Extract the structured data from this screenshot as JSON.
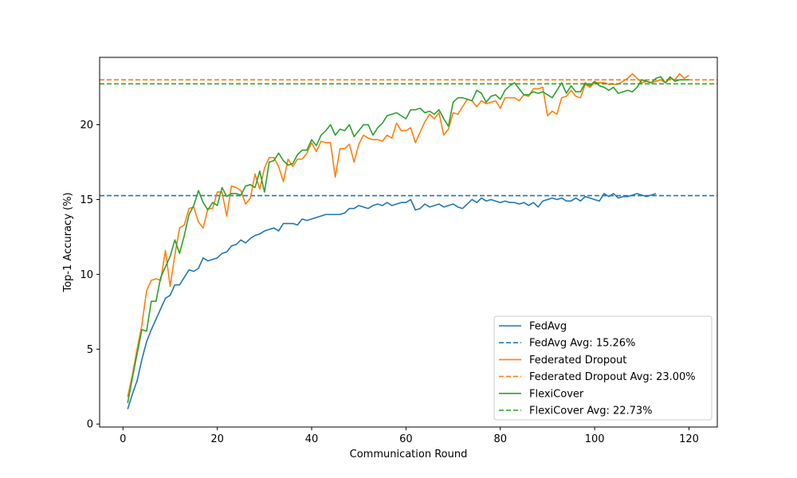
{
  "chart_data": {
    "type": "line",
    "title": "",
    "xlabel": "Communication Round",
    "ylabel": "Top-1 Accuracy (%)",
    "xlim": [
      -4.95,
      126.0
    ],
    "ylim": [
      -0.2,
      24.5
    ],
    "xticks": [
      0,
      20,
      40,
      60,
      80,
      100,
      120
    ],
    "yticks": [
      0,
      5,
      10,
      15,
      20
    ],
    "grid": false,
    "legend_position": "lower-right",
    "series": [
      {
        "name": "FedAvg",
        "color": "#1f77b4",
        "style": "solid",
        "x": [
          1,
          2,
          3,
          4,
          5,
          6,
          7,
          8,
          9,
          10,
          11,
          12,
          13,
          14,
          15,
          16,
          17,
          18,
          19,
          20,
          21,
          22,
          23,
          24,
          25,
          26,
          27,
          28,
          29,
          30,
          31,
          32,
          33,
          34,
          35,
          36,
          37,
          38,
          39,
          40,
          41,
          42,
          43,
          44,
          45,
          46,
          47,
          48,
          49,
          50,
          51,
          52,
          53,
          54,
          55,
          56,
          57,
          58,
          59,
          60,
          61,
          62,
          63,
          64,
          65,
          66,
          67,
          68,
          69,
          70,
          71,
          72,
          73,
          74,
          75,
          76,
          77,
          78,
          79,
          80,
          81,
          82,
          83,
          84,
          85,
          86,
          87,
          88,
          89,
          90,
          91,
          92,
          93,
          94,
          95,
          96,
          97,
          98,
          99,
          100,
          101,
          102,
          103,
          104,
          105,
          106,
          107,
          108,
          109,
          110,
          111,
          112,
          113
        ],
        "y": [
          1.0,
          2.0,
          2.9,
          4.3,
          5.5,
          6.3,
          7.0,
          7.7,
          8.4,
          8.6,
          9.3,
          9.3,
          9.8,
          10.3,
          10.2,
          10.4,
          11.1,
          10.9,
          11.0,
          11.1,
          11.4,
          11.5,
          11.9,
          12.0,
          12.3,
          12.1,
          12.4,
          12.6,
          12.7,
          12.9,
          13.0,
          13.1,
          12.9,
          13.4,
          13.4,
          13.4,
          13.3,
          13.7,
          13.6,
          13.7,
          13.8,
          13.9,
          14.0,
          14.0,
          14.0,
          14.0,
          14.1,
          14.4,
          14.4,
          14.6,
          14.5,
          14.4,
          14.6,
          14.7,
          14.6,
          14.8,
          14.6,
          14.7,
          14.8,
          14.8,
          15.0,
          14.3,
          14.4,
          14.7,
          14.5,
          14.6,
          14.7,
          14.5,
          14.6,
          14.7,
          14.5,
          14.4,
          14.7,
          15.0,
          14.8,
          15.1,
          14.9,
          15.0,
          14.9,
          14.8,
          14.9,
          14.8,
          14.8,
          14.7,
          14.8,
          14.6,
          14.8,
          14.5,
          14.9,
          15.0,
          15.1,
          15.0,
          15.1,
          14.9,
          14.9,
          15.1,
          14.9,
          15.2,
          15.1,
          15.0,
          14.9,
          15.4,
          15.2,
          15.4,
          15.1,
          15.2,
          15.2,
          15.3,
          15.4,
          15.3,
          15.2,
          15.3,
          15.4
        ]
      },
      {
        "name": "FedAvg Avg: 15.26%",
        "color": "#1f77b4",
        "style": "dashed",
        "constant": 15.26
      },
      {
        "name": "Federated Dropout",
        "color": "#ff7f0e",
        "style": "solid",
        "x": [
          1,
          2,
          3,
          4,
          5,
          6,
          7,
          8,
          9,
          10,
          11,
          12,
          13,
          14,
          15,
          16,
          17,
          18,
          19,
          20,
          21,
          22,
          23,
          24,
          25,
          26,
          27,
          28,
          29,
          30,
          31,
          32,
          33,
          34,
          35,
          36,
          37,
          38,
          39,
          40,
          41,
          42,
          43,
          44,
          45,
          46,
          47,
          48,
          49,
          50,
          51,
          52,
          53,
          54,
          55,
          56,
          57,
          58,
          59,
          60,
          61,
          62,
          63,
          64,
          65,
          66,
          67,
          68,
          69,
          70,
          71,
          72,
          73,
          74,
          75,
          76,
          77,
          78,
          79,
          80,
          81,
          82,
          83,
          84,
          85,
          86,
          87,
          88,
          89,
          90,
          91,
          92,
          93,
          94,
          95,
          96,
          97,
          98,
          99,
          100,
          101,
          102,
          103,
          104,
          105,
          106,
          107,
          108,
          109,
          110,
          111,
          112,
          113,
          114,
          115,
          116,
          117,
          118,
          119,
          120
        ],
        "y": [
          1.8,
          3.3,
          5.0,
          6.6,
          8.9,
          9.6,
          9.7,
          9.6,
          11.6,
          9.2,
          11.3,
          13.1,
          13.3,
          14.4,
          14.5,
          13.5,
          13.1,
          14.4,
          14.4,
          15.5,
          15.5,
          13.9,
          15.9,
          15.8,
          15.6,
          14.7,
          15.1,
          16.7,
          15.7,
          17.1,
          17.8,
          17.8,
          17.2,
          16.2,
          17.7,
          17.2,
          17.7,
          17.7,
          18.1,
          18.8,
          18.2,
          18.9,
          18.8,
          18.8,
          16.5,
          18.4,
          18.4,
          18.7,
          17.5,
          18.7,
          19.3,
          19.1,
          19.0,
          19.0,
          18.9,
          19.3,
          19.1,
          20.1,
          19.6,
          19.6,
          19.8,
          18.8,
          19.5,
          20.2,
          20.7,
          20.4,
          20.8,
          19.3,
          19.7,
          20.8,
          20.7,
          21.2,
          21.7,
          21.6,
          21.2,
          21.6,
          21.4,
          21.5,
          21.6,
          21.1,
          21.8,
          21.8,
          21.8,
          21.6,
          22.0,
          21.9,
          22.4,
          22.4,
          22.5,
          20.6,
          20.9,
          20.7,
          21.8,
          21.9,
          22.3,
          21.9,
          21.8,
          22.7,
          22.5,
          22.8,
          22.8,
          22.8,
          22.7,
          22.7,
          22.7,
          22.9,
          23.1,
          23.4,
          23.1,
          22.8,
          22.9,
          22.8,
          22.9,
          23.0,
          22.8,
          23.1,
          23.0,
          23.4,
          23.1,
          23.3
        ]
      },
      {
        "name": "Federated Dropout Avg: 23.00%",
        "color": "#ff7f0e",
        "style": "dashed",
        "constant": 23.0
      },
      {
        "name": "FlexiCover",
        "color": "#2ca02c",
        "style": "solid",
        "x": [
          1,
          2,
          3,
          4,
          5,
          6,
          7,
          8,
          9,
          10,
          11,
          12,
          13,
          14,
          15,
          16,
          17,
          18,
          19,
          20,
          21,
          22,
          23,
          24,
          25,
          26,
          27,
          28,
          29,
          30,
          31,
          32,
          33,
          34,
          35,
          36,
          37,
          38,
          39,
          40,
          41,
          42,
          43,
          44,
          45,
          46,
          47,
          48,
          49,
          50,
          51,
          52,
          53,
          54,
          55,
          56,
          57,
          58,
          59,
          60,
          61,
          62,
          63,
          64,
          65,
          66,
          67,
          68,
          69,
          70,
          71,
          72,
          73,
          74,
          75,
          76,
          77,
          78,
          79,
          80,
          81,
          82,
          83,
          84,
          85,
          86,
          87,
          88,
          89,
          90,
          91,
          92,
          93,
          94,
          95,
          96,
          97,
          98,
          99,
          100,
          101,
          102,
          103,
          104,
          105,
          106,
          107,
          108,
          109,
          110,
          111,
          112,
          113,
          114,
          115,
          116,
          117,
          118,
          119,
          120
        ],
        "y": [
          1.4,
          3.1,
          4.7,
          6.3,
          6.2,
          8.2,
          8.2,
          9.8,
          10.5,
          11.2,
          12.3,
          11.4,
          12.6,
          14.0,
          14.6,
          15.6,
          14.8,
          14.3,
          14.8,
          14.6,
          15.8,
          15.2,
          15.4,
          15.4,
          15.3,
          15.9,
          16.0,
          15.8,
          16.9,
          15.5,
          17.5,
          17.6,
          18.1,
          17.6,
          17.3,
          17.4,
          18.0,
          18.3,
          18.3,
          19.0,
          18.6,
          19.3,
          19.6,
          20.0,
          19.3,
          19.7,
          19.6,
          20.0,
          19.2,
          19.6,
          20.0,
          20.0,
          19.3,
          19.8,
          20.1,
          20.6,
          20.7,
          20.8,
          20.6,
          20.4,
          21.0,
          21.0,
          21.1,
          20.8,
          20.9,
          20.7,
          21.0,
          20.4,
          19.9,
          21.5,
          21.8,
          21.8,
          21.7,
          21.6,
          22.3,
          22.1,
          21.5,
          21.9,
          22.0,
          21.7,
          22.3,
          22.6,
          22.8,
          22.4,
          22.0,
          22.0,
          22.2,
          22.1,
          22.2,
          22.0,
          21.8,
          22.3,
          22.8,
          22.1,
          22.6,
          22.2,
          22.2,
          22.8,
          22.6,
          22.9,
          22.6,
          22.5,
          22.3,
          22.5,
          22.1,
          22.2,
          22.3,
          22.2,
          22.5,
          23.0,
          22.9,
          22.8,
          23.1,
          23.2,
          22.8,
          23.2,
          22.9,
          23.0,
          23.0,
          23.0
        ]
      },
      {
        "name": "FlexiCover Avg: 22.73%",
        "color": "#2ca02c",
        "style": "dashed",
        "constant": 22.73
      }
    ]
  }
}
